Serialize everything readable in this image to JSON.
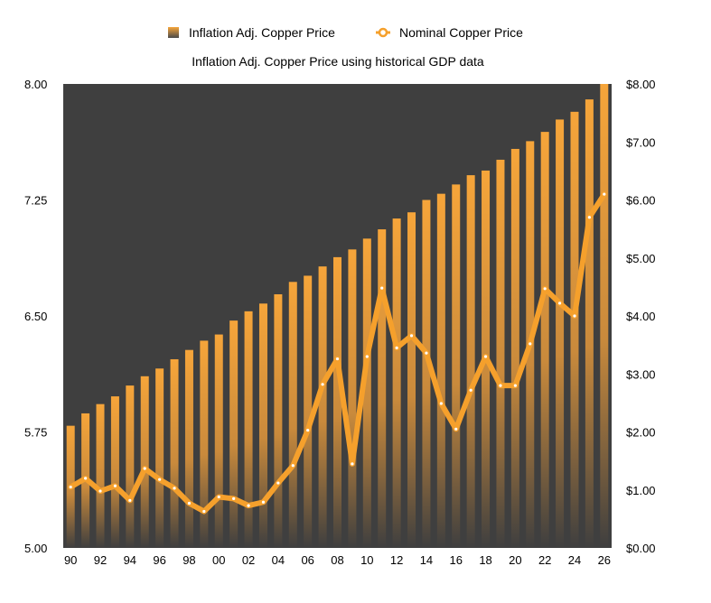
{
  "chart_data": {
    "type": "bar",
    "title": "Inflation Adj. Copper Price using historical GDP data",
    "legend_position": "top",
    "categories": [
      "90",
      "91",
      "92",
      "93",
      "94",
      "95",
      "96",
      "97",
      "98",
      "99",
      "00",
      "01",
      "02",
      "03",
      "04",
      "05",
      "06",
      "07",
      "08",
      "09",
      "10",
      "11",
      "12",
      "13",
      "14",
      "15",
      "16",
      "17",
      "18",
      "19",
      "20",
      "21",
      "22",
      "23",
      "24",
      "25",
      "26"
    ],
    "x_tick_labels": [
      "90",
      "92",
      "94",
      "96",
      "98",
      "00",
      "02",
      "04",
      "06",
      "08",
      "10",
      "12",
      "14",
      "16",
      "18",
      "20",
      "22",
      "24",
      "26"
    ],
    "left_axis": {
      "min": 5.0,
      "max": 8.0,
      "ticks": [
        "5.00",
        "5.75",
        "6.50",
        "7.25",
        "8.00"
      ]
    },
    "right_axis": {
      "min": 0,
      "max": 8,
      "ticks": [
        "$0.00",
        "$1.00",
        "$2.00",
        "$3.00",
        "$4.00",
        "$5.00",
        "$6.00",
        "$7.00",
        "$8.00"
      ]
    },
    "series": [
      {
        "name": "Inflation Adj. Copper Price",
        "type": "bar",
        "axis": "left",
        "values": [
          5.79,
          5.87,
          5.93,
          5.98,
          6.05,
          6.11,
          6.16,
          6.22,
          6.28,
          6.34,
          6.38,
          6.47,
          6.53,
          6.58,
          6.64,
          6.72,
          6.76,
          6.82,
          6.88,
          6.93,
          7.0,
          7.06,
          7.13,
          7.17,
          7.25,
          7.29,
          7.35,
          7.41,
          7.44,
          7.51,
          7.58,
          7.63,
          7.69,
          7.77,
          7.82,
          7.9,
          8.0
        ]
      },
      {
        "name": "Nominal Copper Price",
        "type": "line",
        "axis": "right",
        "values": [
          1.05,
          1.2,
          0.98,
          1.07,
          0.82,
          1.37,
          1.18,
          1.03,
          0.77,
          0.63,
          0.88,
          0.85,
          0.73,
          0.79,
          1.12,
          1.42,
          2.03,
          2.82,
          3.26,
          1.45,
          3.3,
          4.48,
          3.45,
          3.66,
          3.36,
          2.49,
          2.05,
          2.72,
          3.3,
          2.8,
          2.8,
          3.52,
          4.47,
          4.22,
          4.0,
          5.7,
          6.1
        ]
      }
    ]
  },
  "colors": {
    "plot_background": "#3f3f3f",
    "bar_top": "#f6a53a",
    "bar_bottom": "#3f3f3f",
    "line": "#f5a02c",
    "marker": "#ffffff"
  }
}
